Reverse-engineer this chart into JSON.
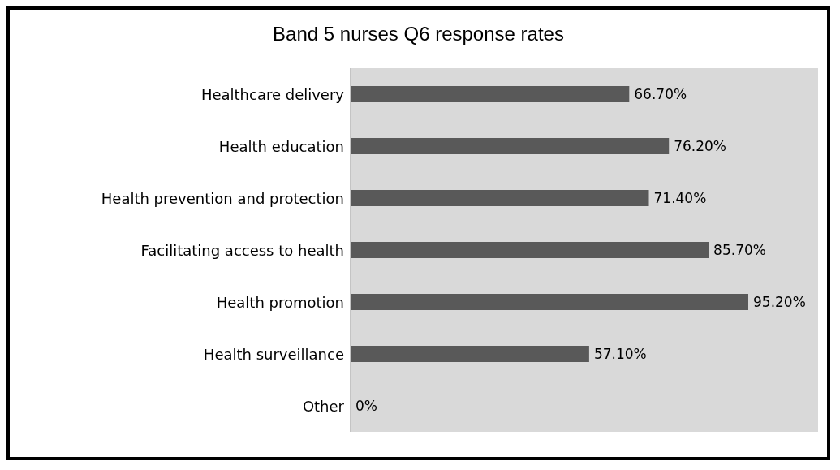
{
  "chart_data": {
    "type": "bar",
    "orientation": "horizontal",
    "title": "Band 5 nurses Q6 response rates",
    "categories": [
      "Healthcare delivery",
      "Health education",
      "Health prevention and protection",
      "Facilitating access to health",
      "Health promotion",
      "Health surveillance",
      "Other"
    ],
    "values": [
      66.7,
      76.2,
      71.4,
      85.7,
      95.2,
      57.1,
      0
    ],
    "value_labels": [
      "66.70%",
      "76.20%",
      "71.40%",
      "85.70%",
      "95.20%",
      "57.10%",
      "0%"
    ],
    "color": "#595959",
    "tick_labels": "y"
  }
}
